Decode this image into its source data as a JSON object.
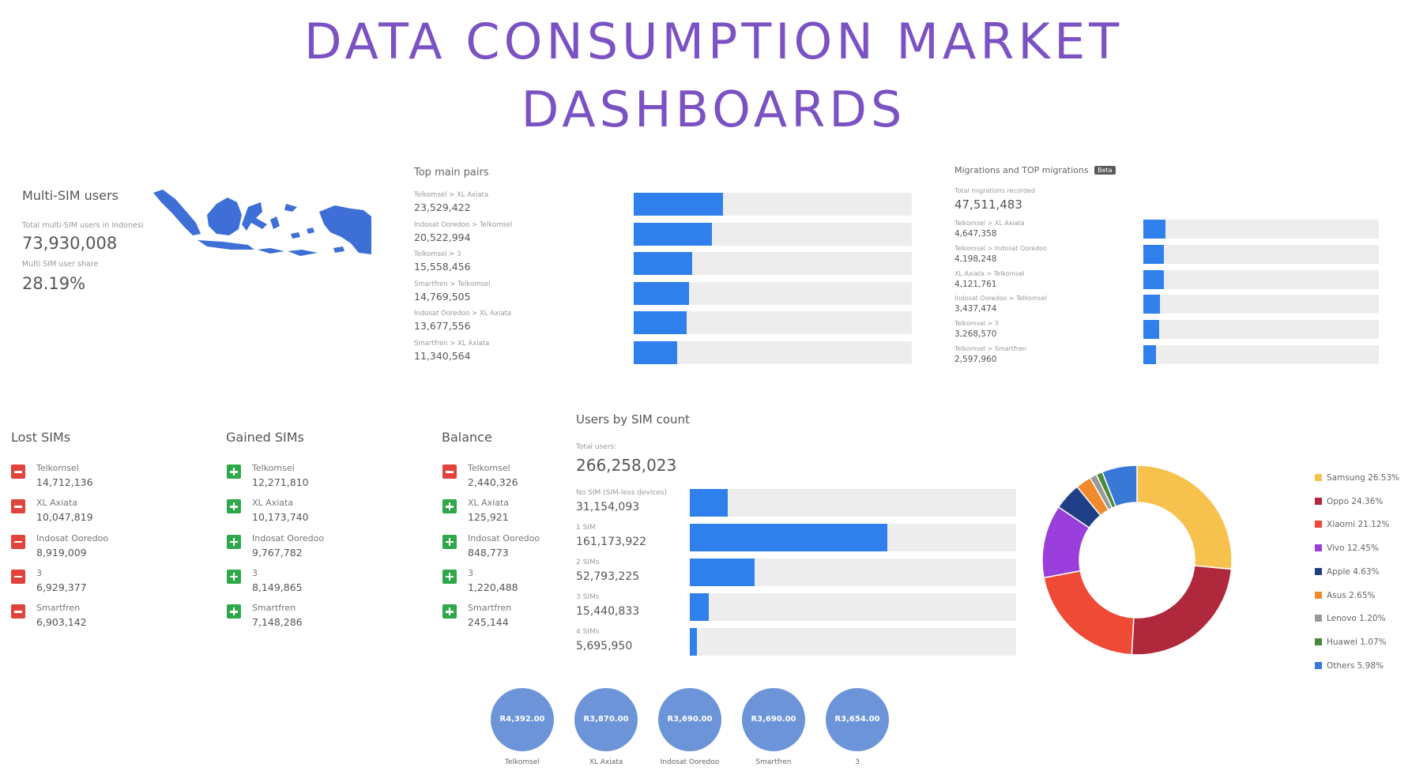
{
  "title": {
    "line1": "DATA CONSUMPTION MARKET",
    "line2": "DASHBOARDS"
  },
  "multi_sim": {
    "heading": "Multi-SIM users",
    "total_label": "Total multi-SIM users in Indonesi",
    "total_value": "73,930,008",
    "share_label": "Multi SIM user share",
    "share_value": "28.19%"
  },
  "top_pairs": {
    "heading": "Top main pairs",
    "items": [
      {
        "label": "Telkomsel > XL Axiata",
        "value": "23,529,422",
        "fraction": 0.32
      },
      {
        "label": "Indosat Ooredoo > Telkomsel",
        "value": "20,522,994",
        "fraction": 0.28
      },
      {
        "label": "Telkomsel > 3",
        "value": "15,558,456",
        "fraction": 0.21
      },
      {
        "label": "Smartfren > Telkomsel",
        "value": "14,769,505",
        "fraction": 0.2
      },
      {
        "label": "Indosat Ooredoo > XL Axiata",
        "value": "13,677,556",
        "fraction": 0.19
      },
      {
        "label": "Smartfren > XL Axiata",
        "value": "11,340,564",
        "fraction": 0.155
      }
    ]
  },
  "migrations": {
    "heading": "Migrations and TOP migrations",
    "badge": "Beta",
    "total_label": "Total migrations recorded",
    "total_value": "47,511,483",
    "items": [
      {
        "label": "Telkomsel > XL Axiata",
        "value": "4,647,358",
        "fraction": 0.095
      },
      {
        "label": "Telkomsel > Indosat Ooredoo",
        "value": "4,198,248",
        "fraction": 0.088
      },
      {
        "label": "XL Axiata > Telkomsel",
        "value": "4,121,761",
        "fraction": 0.086
      },
      {
        "label": "Indosat Ooredoo > Telkomsel",
        "value": "3,437,474",
        "fraction": 0.072
      },
      {
        "label": "Telkomsel > 3",
        "value": "3,268,570",
        "fraction": 0.068
      },
      {
        "label": "Telkomsel > Smartfren",
        "value": "2,597,960",
        "fraction": 0.054
      }
    ]
  },
  "lost_sims": {
    "heading": "Lost SIMs",
    "items": [
      {
        "name": "Telkomsel",
        "value": "14,712,136",
        "sign": "minus"
      },
      {
        "name": "XL Axiata",
        "value": "10,047,819",
        "sign": "minus"
      },
      {
        "name": "Indosat Ooredoo",
        "value": "8,919,009",
        "sign": "minus"
      },
      {
        "name": "3",
        "value": "6,929,377",
        "sign": "minus"
      },
      {
        "name": "Smartfren",
        "value": "6,903,142",
        "sign": "minus"
      }
    ]
  },
  "gained_sims": {
    "heading": "Gained SIMs",
    "items": [
      {
        "name": "Telkomsel",
        "value": "12,271,810",
        "sign": "plus"
      },
      {
        "name": "XL Axiata",
        "value": "10,173,740",
        "sign": "plus"
      },
      {
        "name": "Indosat Ooredoo",
        "value": "9,767,782",
        "sign": "plus"
      },
      {
        "name": "3",
        "value": "8,149,865",
        "sign": "plus"
      },
      {
        "name": "Smartfren",
        "value": "7,148,286",
        "sign": "plus"
      }
    ]
  },
  "balance": {
    "heading": "Balance",
    "items": [
      {
        "name": "Telkomsel",
        "value": "2,440,326",
        "sign": "minus"
      },
      {
        "name": "XL Axiata",
        "value": "125,921",
        "sign": "plus"
      },
      {
        "name": "Indosat Ooredoo",
        "value": "848,773",
        "sign": "plus"
      },
      {
        "name": "3",
        "value": "1,220,488",
        "sign": "plus"
      },
      {
        "name": "Smartfren",
        "value": "245,144",
        "sign": "plus"
      }
    ]
  },
  "users_by_sim": {
    "heading": "Users by SIM count",
    "total_label": "Total users:",
    "total_value": "266,258,023",
    "items": [
      {
        "label": "No SIM (SIM-less devices)",
        "value": "31,154,093",
        "fraction": 0.117
      },
      {
        "label": "1 SIM",
        "value": "161,173,922",
        "fraction": 0.605
      },
      {
        "label": "2 SIMs",
        "value": "52,793,225",
        "fraction": 0.198
      },
      {
        "label": "3 SIMs",
        "value": "15,440,833",
        "fraction": 0.058
      },
      {
        "label": "4 SIMs",
        "value": "5,695,950",
        "fraction": 0.021
      }
    ]
  },
  "chart_data": {
    "type": "pie",
    "categories": [
      "Samsung",
      "Oppo",
      "Xiaomi",
      "Vivo",
      "Apple",
      "Asus",
      "Lenovo",
      "Huawei",
      "Others"
    ],
    "values": [
      26.53,
      24.36,
      21.12,
      12.45,
      4.63,
      2.65,
      1.2,
      1.07,
      5.98
    ],
    "legend_labels": [
      "Samsung 26.53%",
      "Oppo 24.36%",
      "Xiaomi 21.12%",
      "Vivo 12.45%",
      "Apple 4.63%",
      "Asus 2.65%",
      "Lenovo 1.20%",
      "Huawei 1.07%",
      "Others 5.98%"
    ],
    "colors": [
      "#f7c14e",
      "#b0283b",
      "#ee4a36",
      "#9a3fdc",
      "#1f3f86",
      "#f08a2c",
      "#9a9a9a",
      "#4a8a3a",
      "#3a78d8"
    ],
    "legend_position": "right"
  },
  "price_bubbles": [
    {
      "value": "R4,392.00",
      "label": "Telkomsel"
    },
    {
      "value": "R3,870.00",
      "label": "XL Axiata"
    },
    {
      "value": "R3,690.00",
      "label": "Indosat Ooredoo"
    },
    {
      "value": "R3,690.00",
      "label": "Smartfren"
    },
    {
      "value": "R3,654.00",
      "label": "3"
    }
  ],
  "colors": {
    "title": "#7b52c4",
    "bar": "#2f80ed",
    "track": "#ededed",
    "minus": "#e0443c",
    "plus": "#2ea84a",
    "bubble": "#6c94d8"
  }
}
